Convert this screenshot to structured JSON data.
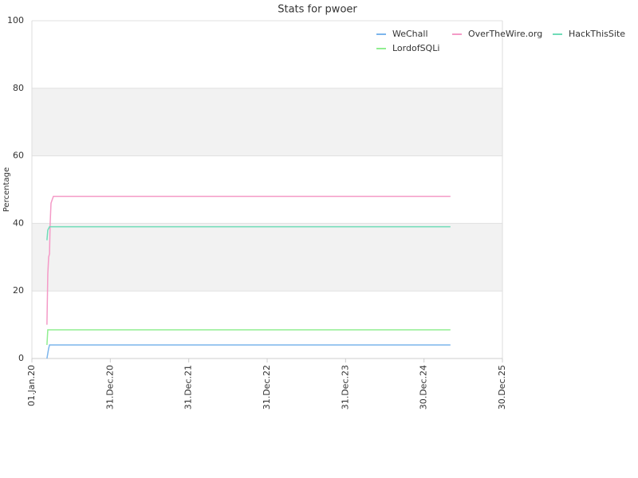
{
  "chart_data": {
    "type": "line",
    "title": "Stats for pwoer",
    "y_label": "Percentage",
    "ylim": [
      0,
      100
    ],
    "yticks": [
      0,
      20,
      40,
      60,
      80,
      100
    ],
    "grid": true,
    "plot_bands": [
      [
        20,
        40
      ],
      [
        60,
        80
      ]
    ],
    "xlim": [
      "2020-01-01",
      "2025-12-30"
    ],
    "xticks": [
      {
        "value": "2020-01-01",
        "label": "01.Jan.20"
      },
      {
        "value": "2020-12-31",
        "label": "31.Dec.20"
      },
      {
        "value": "2021-12-31",
        "label": "31.Dec.21"
      },
      {
        "value": "2022-12-31",
        "label": "31.Dec.22"
      },
      {
        "value": "2023-12-31",
        "label": "31.Dec.23"
      },
      {
        "value": "2024-12-30",
        "label": "30.Dec.24"
      },
      {
        "value": "2025-12-30",
        "label": "30.Dec.25"
      }
    ],
    "legend": "top-right",
    "series": [
      {
        "name": "WeChall",
        "color": "#7cb5ec",
        "x": [
          "2020-03-11",
          "2020-03-19",
          "2020-03-23",
          "2025-05-02"
        ],
        "values": [
          0,
          3,
          4,
          4
        ]
      },
      {
        "name": "OverTheWire.org",
        "color": "#f49ac7",
        "x": [
          "2020-03-11",
          "2020-03-15",
          "2020-03-19",
          "2020-03-23",
          "2020-03-26",
          "2020-03-30",
          "2020-04-10",
          "2025-05-02"
        ],
        "values": [
          10,
          25,
          30,
          31,
          40,
          46,
          48,
          48
        ]
      },
      {
        "name": "HackThisSite",
        "color": "#6fdcb8",
        "x": [
          "2020-03-11",
          "2020-03-15",
          "2020-03-23",
          "2025-05-02"
        ],
        "values": [
          35,
          38,
          39,
          39
        ]
      },
      {
        "name": "LordofSQLi",
        "color": "#90ee90",
        "x": [
          "2020-03-11",
          "2020-03-15",
          "2025-05-02"
        ],
        "values": [
          4,
          8.5,
          8.5
        ]
      }
    ]
  }
}
